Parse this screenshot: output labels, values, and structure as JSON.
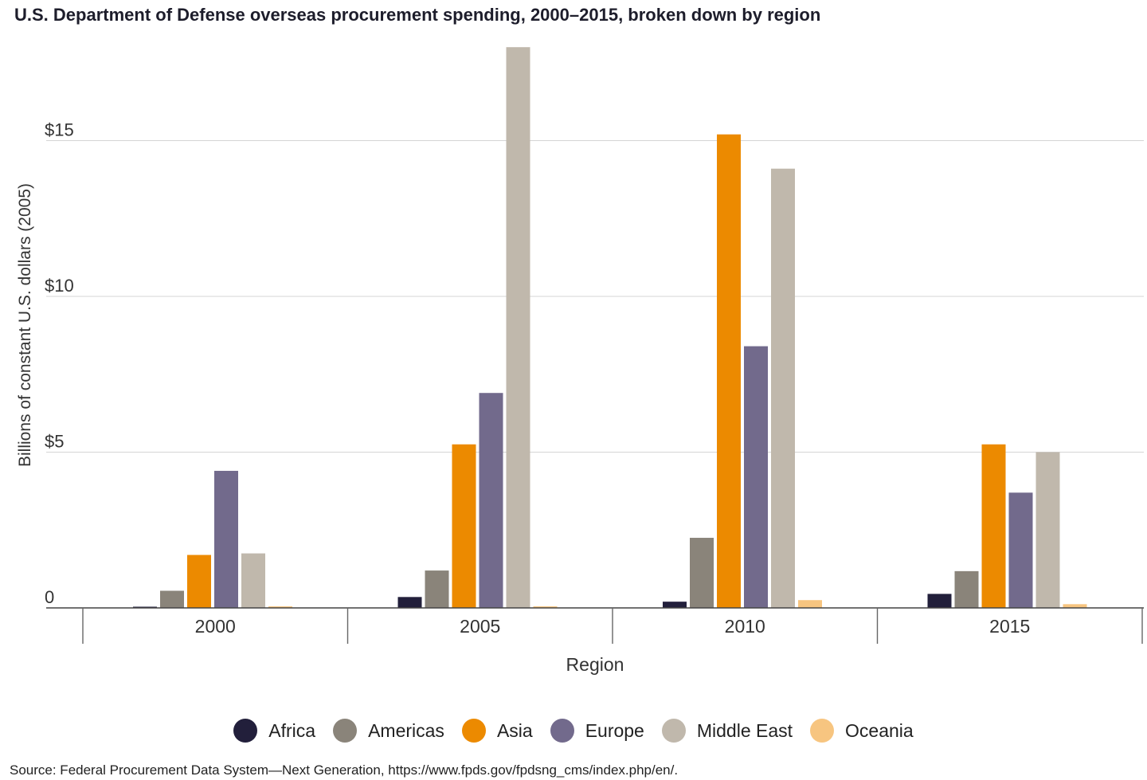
{
  "title": "U.S. Department of Defense overseas procurement spending, 2000–2015, broken down by region",
  "source": "Source: Federal Procurement Data System—Next Generation, https://www.fpds.gov/fpdsng_cms/index.php/en/.",
  "chart_data": {
    "type": "bar",
    "xlabel": "Region",
    "ylabel": "Billions of constant U.S. dollars (2005)",
    "categories": [
      "2000",
      "2005",
      "2010",
      "2015"
    ],
    "yticks": [
      {
        "value": 0,
        "label": "0"
      },
      {
        "value": 5,
        "label": "$5"
      },
      {
        "value": 10,
        "label": "$10"
      },
      {
        "value": 15,
        "label": "$15"
      }
    ],
    "ylim": [
      0,
      18
    ],
    "grid": true,
    "legend_position": "bottom",
    "series": [
      {
        "name": "Africa",
        "color": "#221f3b",
        "values": [
          0.02,
          0.35,
          0.2,
          0.45
        ]
      },
      {
        "name": "Americas",
        "color": "#8a847a",
        "values": [
          0.55,
          1.2,
          2.25,
          1.18
        ]
      },
      {
        "name": "Asia",
        "color": "#ec8a00",
        "values": [
          1.7,
          5.25,
          15.2,
          5.25
        ]
      },
      {
        "name": "Europe",
        "color": "#726a8c",
        "values": [
          4.4,
          6.9,
          8.4,
          3.7
        ]
      },
      {
        "name": "Middle East",
        "color": "#c0b8ac",
        "values": [
          1.75,
          18.0,
          14.1,
          5.0
        ]
      },
      {
        "name": "Oceania",
        "color": "#f7c580",
        "values": [
          0.05,
          0.05,
          0.25,
          0.12
        ]
      }
    ]
  }
}
